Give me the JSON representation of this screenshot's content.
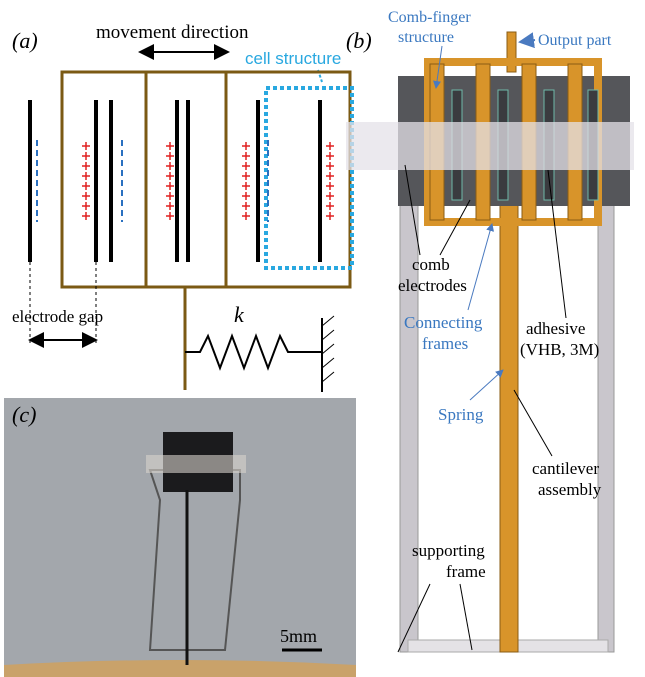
{
  "panel_a": {
    "label": "(a)",
    "movement": "movement direction",
    "cell": "cell structure",
    "gap": "electrode gap",
    "spring": "k"
  },
  "panel_b": {
    "label": "(b)",
    "comb_finger": [
      "Comb-finger",
      "structure"
    ],
    "output": "Output part",
    "comb_electrodes": [
      "comb",
      "electrodes"
    ],
    "connecting": [
      "Connecting",
      "frames"
    ],
    "adhesive": [
      "adhesive",
      "(VHB, 3M)"
    ],
    "spring": "Spring",
    "cantilever": [
      "cantilever",
      "assembly"
    ],
    "supporting": [
      "supporting",
      "frame"
    ]
  },
  "panel_c": {
    "label": "(c)",
    "scale": "5mm"
  }
}
